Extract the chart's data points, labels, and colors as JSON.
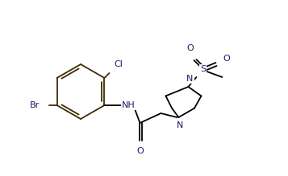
{
  "bg_color": "#ffffff",
  "bond_color": "#000000",
  "ring_color": "#3d2b00",
  "text_color": "#1a1a6e",
  "label_Cl": "Cl",
  "label_Br": "Br",
  "label_NH": "NH",
  "label_N1": "N",
  "label_N2": "N",
  "label_O_carbonyl": "O",
  "label_O1_sulfonyl": "O",
  "label_O2_sulfonyl": "O",
  "label_S": "S",
  "figsize": [
    3.57,
    2.19
  ],
  "dpi": 100
}
